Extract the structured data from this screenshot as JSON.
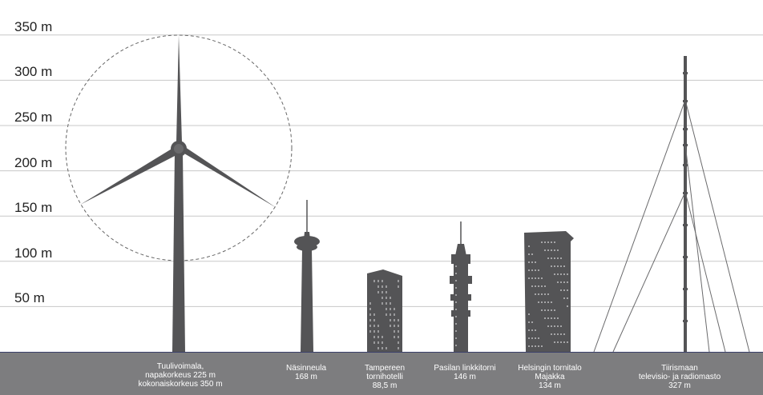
{
  "scale": {
    "unit": "m",
    "ticks": [
      {
        "value": 50,
        "label": "50 m"
      },
      {
        "value": 100,
        "label": "100 m"
      },
      {
        "value": 150,
        "label": "150 m"
      },
      {
        "value": 200,
        "label": "200 m"
      },
      {
        "value": 250,
        "label": "250 m"
      },
      {
        "value": 300,
        "label": "300 m"
      },
      {
        "value": 350,
        "label": "350 m"
      }
    ]
  },
  "structures": [
    {
      "id": "wind-turbine",
      "height_m": 350,
      "hub_height_m": 225,
      "caption": [
        "Tuulivoimala,",
        "napakorkeus 225 m",
        "kokonaiskorkeus 350 m"
      ]
    },
    {
      "id": "nasinneula",
      "height_m": 168,
      "caption": [
        "Näsinneula",
        "168 m"
      ]
    },
    {
      "id": "tornihotelli",
      "height_m": 88.5,
      "caption": [
        "Tampereen",
        "tornihotelli",
        "88,5 m"
      ]
    },
    {
      "id": "pasila-tower",
      "height_m": 146,
      "caption": [
        "Pasilan linkkitorni",
        "146 m"
      ]
    },
    {
      "id": "majakka",
      "height_m": 134,
      "caption": [
        "Helsingin tornitalo",
        "Majakka",
        "134 m"
      ]
    },
    {
      "id": "tiirismaa-mast",
      "height_m": 327,
      "caption": [
        "Tiirismaan",
        "televisio- ja radiomasto",
        "327 m"
      ]
    }
  ],
  "colors": {
    "silhouette": "#545456",
    "ground": "#7d7d7f",
    "grid": "#c8c8c8",
    "ground_line": "#3a3f6a"
  }
}
